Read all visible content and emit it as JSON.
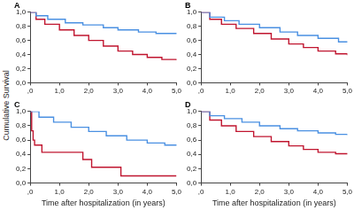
{
  "chart_data": [
    {
      "type": "line",
      "title": "A",
      "y_label": "Cumulative Survival",
      "xlim": [
        0,
        5
      ],
      "xticks": [
        {
          "value": 0,
          "label": ",0"
        },
        {
          "value": 1,
          "label": "1,0"
        },
        {
          "value": 2,
          "label": "2,0"
        },
        {
          "value": 3,
          "label": "3,0"
        },
        {
          "value": 4,
          "label": "4,0"
        },
        {
          "value": 5,
          "label": "5,0"
        }
      ],
      "ylim": [
        0,
        1
      ],
      "yticks": [
        {
          "value": 0,
          "label": "0,0"
        },
        {
          "value": 0.2,
          "label": "0,2"
        },
        {
          "value": 0.4,
          "label": "0,4"
        },
        {
          "value": 0.6,
          "label": "0,6"
        },
        {
          "value": 0.8,
          "label": "0,8"
        },
        {
          "value": 1,
          "label": "1,0"
        }
      ],
      "grid": false,
      "line_style": "steps",
      "series": [
        {
          "color": "#4a90e2",
          "x": [
            0,
            0.2,
            0.6,
            1.2,
            1.8,
            2.5,
            3,
            3.7,
            4.3,
            5
          ],
          "values": [
            1,
            0.95,
            0.9,
            0.85,
            0.82,
            0.78,
            0.75,
            0.72,
            0.7,
            0.69
          ]
        },
        {
          "color": "#c0152f",
          "x": [
            0,
            0.2,
            0.5,
            1,
            1.5,
            2,
            2.5,
            3,
            3.5,
            4,
            4.5,
            5
          ],
          "values": [
            1,
            0.9,
            0.83,
            0.75,
            0.67,
            0.6,
            0.52,
            0.45,
            0.4,
            0.36,
            0.33,
            0.32
          ]
        }
      ]
    },
    {
      "type": "line",
      "title": "B",
      "xlim": [
        0,
        5
      ],
      "xticks": [
        {
          "value": 0,
          "label": ",0"
        },
        {
          "value": 1,
          "label": "1,0"
        },
        {
          "value": 2,
          "label": "2,0"
        },
        {
          "value": 3,
          "label": "3,0"
        },
        {
          "value": 4,
          "label": "4,0"
        },
        {
          "value": 5,
          "label": "5,0"
        }
      ],
      "ylim": [
        0,
        1
      ],
      "yticks": [
        {
          "value": 0,
          "label": "0,0"
        },
        {
          "value": 0.2,
          "label": "0,2"
        },
        {
          "value": 0.4,
          "label": "0,4"
        },
        {
          "value": 0.6,
          "label": "0,6"
        },
        {
          "value": 0.8,
          "label": "0,8"
        },
        {
          "value": 1,
          "label": "1,0"
        }
      ],
      "grid": false,
      "line_style": "steps",
      "series": [
        {
          "color": "#4a90e2",
          "x": [
            0,
            0.3,
            0.8,
            1.3,
            2,
            2.7,
            3.3,
            4,
            4.7,
            5
          ],
          "values": [
            1,
            0.93,
            0.88,
            0.83,
            0.78,
            0.72,
            0.67,
            0.63,
            0.58,
            0.57
          ]
        },
        {
          "color": "#c0152f",
          "x": [
            0,
            0.3,
            0.7,
            1.2,
            1.8,
            2.4,
            3,
            3.5,
            4,
            4.6,
            5
          ],
          "values": [
            1,
            0.9,
            0.83,
            0.77,
            0.7,
            0.62,
            0.55,
            0.5,
            0.45,
            0.41,
            0.39
          ]
        }
      ]
    },
    {
      "type": "line",
      "title": "C",
      "x_label": "Time after hospitalization (in years)",
      "xlim": [
        0,
        5
      ],
      "xticks": [
        {
          "value": 0,
          "label": ",0"
        },
        {
          "value": 1,
          "label": "1,0"
        },
        {
          "value": 2,
          "label": "2,0"
        },
        {
          "value": 3,
          "label": "3,0"
        },
        {
          "value": 4,
          "label": "4,0"
        },
        {
          "value": 5,
          "label": "5,0"
        }
      ],
      "ylim": [
        0,
        1
      ],
      "yticks": [
        {
          "value": 0,
          "label": "0,0"
        },
        {
          "value": 0.2,
          "label": "0,2"
        },
        {
          "value": 0.4,
          "label": "0,4"
        },
        {
          "value": 0.6,
          "label": "0,6"
        },
        {
          "value": 0.8,
          "label": "0,8"
        },
        {
          "value": 1,
          "label": "1,0"
        }
      ],
      "grid": false,
      "line_style": "steps",
      "series": [
        {
          "color": "#4a90e2",
          "x": [
            0,
            0.3,
            0.8,
            1.4,
            2,
            2.6,
            3.3,
            4,
            4.6,
            5
          ],
          "values": [
            1,
            0.92,
            0.85,
            0.78,
            0.72,
            0.66,
            0.6,
            0.56,
            0.53,
            0.52
          ]
        },
        {
          "color": "#c0152f",
          "x": [
            0,
            0.05,
            0.1,
            0.15,
            0.4,
            1.8,
            2.1,
            3.1,
            5
          ],
          "values": [
            1,
            0.73,
            0.6,
            0.53,
            0.43,
            0.33,
            0.22,
            0.1,
            0.1
          ]
        }
      ]
    },
    {
      "type": "line",
      "title": "D",
      "x_label": "Time after hospitalization (in years)",
      "xlim": [
        0,
        5
      ],
      "xticks": [
        {
          "value": 0,
          "label": ",0"
        },
        {
          "value": 1,
          "label": "1,0"
        },
        {
          "value": 2,
          "label": "2,0"
        },
        {
          "value": 3,
          "label": "3,0"
        },
        {
          "value": 4,
          "label": "4,0"
        },
        {
          "value": 5,
          "label": "5,0"
        }
      ],
      "ylim": [
        0,
        1
      ],
      "yticks": [
        {
          "value": 0,
          "label": "0,0"
        },
        {
          "value": 0.2,
          "label": "0,2"
        },
        {
          "value": 0.4,
          "label": "0,4"
        },
        {
          "value": 0.6,
          "label": "0,6"
        },
        {
          "value": 0.8,
          "label": "0,8"
        },
        {
          "value": 1,
          "label": "1,0"
        }
      ],
      "grid": false,
      "line_style": "steps",
      "series": [
        {
          "color": "#4a90e2",
          "x": [
            0,
            0.3,
            0.8,
            1.4,
            2,
            2.7,
            3.3,
            4,
            4.6,
            5
          ],
          "values": [
            1,
            0.94,
            0.9,
            0.85,
            0.8,
            0.76,
            0.73,
            0.7,
            0.68,
            0.67
          ]
        },
        {
          "color": "#c0152f",
          "x": [
            0,
            0.3,
            0.7,
            1.2,
            1.8,
            2.4,
            3,
            3.5,
            4,
            4.6,
            5
          ],
          "values": [
            1,
            0.88,
            0.8,
            0.72,
            0.65,
            0.58,
            0.52,
            0.47,
            0.43,
            0.41,
            0.4
          ]
        }
      ]
    }
  ]
}
